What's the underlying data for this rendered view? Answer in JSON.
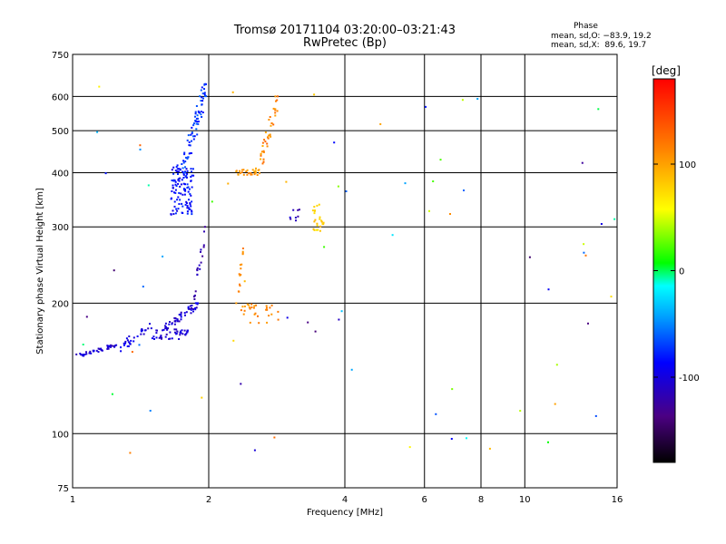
{
  "header": {
    "title_line1": "Tromsø 20171104 03:20:00–03:21:43",
    "title_line2": "RwPretec (Bp)",
    "phase_label": "Phase",
    "stat_o": "mean, sd,O: −83.9, 19.2",
    "stat_x": "mean, sd,X:  89.6, 19.7"
  },
  "chart_data": {
    "type": "scatter",
    "xlabel": "Frequency [MHz]",
    "ylabel": "Stationary phase Virtual Height [km]",
    "xscale": "log",
    "yscale": "log",
    "xlim": [
      1,
      16
    ],
    "ylim": [
      75,
      750
    ],
    "x_ticks": [
      {
        "v": 1,
        "label": "1"
      },
      {
        "v": 2,
        "label": "2"
      },
      {
        "v": 4,
        "label": "4"
      },
      {
        "v": 6,
        "label": "6"
      },
      {
        "v": 8,
        "label": "8"
      },
      {
        "v": 10,
        "label": "10"
      },
      {
        "v": 16,
        "label": "16"
      }
    ],
    "y_ticks": [
      {
        "v": 75,
        "label": "75"
      },
      {
        "v": 100,
        "label": "100"
      },
      {
        "v": 200,
        "label": "200"
      },
      {
        "v": 300,
        "label": "300"
      },
      {
        "v": 400,
        "label": "400"
      },
      {
        "v": 500,
        "label": "500"
      },
      {
        "v": 600,
        "label": "600"
      },
      {
        "v": 750,
        "label": "750"
      }
    ],
    "grid": true,
    "colorbar": {
      "label": "[deg]",
      "range": [
        -180,
        180
      ],
      "ticks": [
        {
          "v": -100,
          "label": "-100"
        },
        {
          "v": 0,
          "label": "0"
        },
        {
          "v": 100,
          "label": "100"
        }
      ]
    },
    "clusters": [
      {
        "f": [
          1.0,
          1.25
        ],
        "h": [
          150,
          160
        ],
        "phase": [
          -115,
          -95
        ],
        "n": 45,
        "curve": "up"
      },
      {
        "f": [
          1.25,
          1.5
        ],
        "h": [
          155,
          180
        ],
        "phase": [
          -110,
          -90
        ],
        "n": 30,
        "curve": "up"
      },
      {
        "f": [
          1.5,
          1.8
        ],
        "h": [
          165,
          175
        ],
        "phase": [
          -115,
          -95
        ],
        "n": 45,
        "curve": "flat"
      },
      {
        "f": [
          1.6,
          1.9
        ],
        "h": [
          175,
          200
        ],
        "phase": [
          -115,
          -90
        ],
        "n": 50,
        "curve": "up"
      },
      {
        "f": [
          1.65,
          1.85
        ],
        "h": [
          320,
          420
        ],
        "phase": [
          -100,
          -75
        ],
        "n": 110,
        "curve": "rand"
      },
      {
        "f": [
          1.75,
          1.98
        ],
        "h": [
          400,
          640
        ],
        "phase": [
          -90,
          -60
        ],
        "n": 80,
        "curve": "up"
      },
      {
        "f": [
          1.85,
          1.98
        ],
        "h": [
          200,
          300
        ],
        "phase": [
          -125,
          -105
        ],
        "n": 20,
        "curve": "up"
      },
      {
        "f": [
          2.3,
          2.6
        ],
        "h": [
          395,
          410
        ],
        "phase": [
          95,
          115
        ],
        "n": 28,
        "curve": "flat"
      },
      {
        "f": [
          2.6,
          2.85
        ],
        "h": [
          420,
          600
        ],
        "phase": [
          95,
          130
        ],
        "n": 40,
        "curve": "up"
      },
      {
        "f": [
          2.35,
          2.85
        ],
        "h": [
          180,
          200
        ],
        "phase": [
          100,
          125
        ],
        "n": 30,
        "curve": "rand"
      },
      {
        "f": [
          2.3,
          2.4
        ],
        "h": [
          200,
          270
        ],
        "phase": [
          100,
          120
        ],
        "n": 15,
        "curve": "up"
      },
      {
        "f": [
          3.4,
          3.6
        ],
        "h": [
          290,
          340
        ],
        "phase": [
          70,
          95
        ],
        "n": 25,
        "curve": "rand"
      },
      {
        "f": [
          3.0,
          3.2
        ],
        "h": [
          310,
          330
        ],
        "phase": [
          -120,
          -100
        ],
        "n": 8,
        "curve": "rand"
      },
      {
        "f": [
          1.0,
          16.0
        ],
        "h": [
          90,
          650
        ],
        "phase": [
          -140,
          140
        ],
        "n": 70,
        "curve": "rand"
      }
    ]
  }
}
